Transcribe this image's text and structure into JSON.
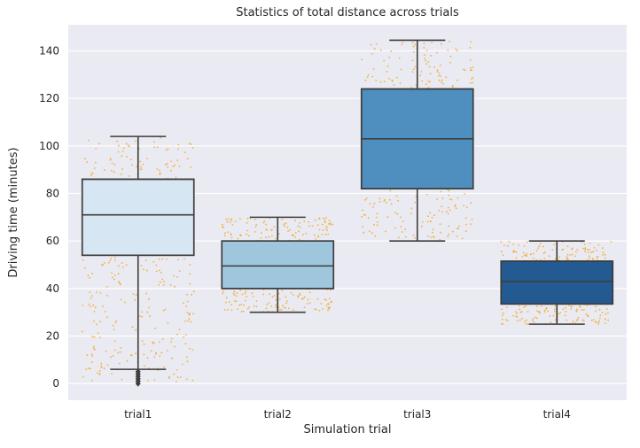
{
  "chart_data": {
    "type": "box",
    "title": "Statistics of total distance across trials",
    "xlabel": "Simulation trial",
    "ylabel": "Driving time (minutes)",
    "ylim": [
      -7,
      151
    ],
    "yticks": [
      0,
      20,
      40,
      60,
      80,
      100,
      120,
      140
    ],
    "grid": true,
    "categories": [
      "trial1",
      "trial2",
      "trial3",
      "trial4"
    ],
    "boxes": [
      {
        "name": "trial1",
        "whisker_low": 6,
        "q1": 54,
        "median": 71,
        "q3": 86,
        "whisker_high": 104,
        "outlier_low": 0,
        "outlier_high": 5,
        "color": "#d6e6f2",
        "strip_min": 0,
        "strip_max": 104
      },
      {
        "name": "trial2",
        "whisker_low": 30,
        "q1": 40,
        "median": 49.5,
        "q3": 60,
        "whisker_high": 70,
        "color": "#9ec7de",
        "strip_min": 30,
        "strip_max": 70
      },
      {
        "name": "trial3",
        "whisker_low": 60,
        "q1": 82,
        "median": 103,
        "q3": 124,
        "whisker_high": 144.5,
        "color": "#4f8fbf",
        "strip_min": 60,
        "strip_max": 144.5
      },
      {
        "name": "trial4",
        "whisker_low": 25,
        "q1": 33.5,
        "median": 43,
        "q3": 51.5,
        "whisker_high": 60,
        "color": "#235a91",
        "strip_min": 25,
        "strip_max": 60
      }
    ],
    "strip_color": "#f5a623",
    "colors": {
      "background": "#eaeaf2",
      "grid": "#ffffff",
      "box_edge": "#3d3d3d"
    }
  }
}
